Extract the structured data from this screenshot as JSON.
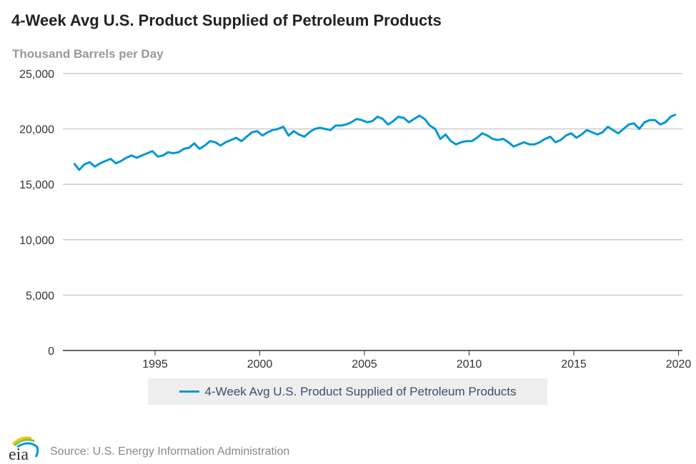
{
  "chart_data": {
    "type": "line",
    "title": "4-Week Avg U.S. Product Supplied of Petroleum Products",
    "ylabel": "Thousand Barrels per Day",
    "xlabel": "",
    "ylim": [
      0,
      25000
    ],
    "yticks": [
      0,
      5000,
      10000,
      15000,
      20000,
      25000
    ],
    "ytick_labels": [
      "0",
      "5,000",
      "10,000",
      "15,000",
      "20,000",
      "25,000"
    ],
    "xticks": [
      1995,
      2000,
      2005,
      2010,
      2015,
      2020
    ],
    "xtick_labels": [
      "1995",
      "2000",
      "2005",
      "2010",
      "2015",
      "2020"
    ],
    "grid": "horizontal",
    "legend_position": "bottom",
    "color": "#0096d7",
    "series": [
      {
        "name": "4-Week Avg U.S. Product Supplied of Petroleum Products",
        "start_year": 1991,
        "points_per_year": 4,
        "values": [
          16900,
          16300,
          16800,
          17000,
          16600,
          16900,
          17100,
          17300,
          16900,
          17100,
          17400,
          17600,
          17400,
          17600,
          17800,
          18000,
          17500,
          17600,
          17900,
          17800,
          17900,
          18200,
          18300,
          18700,
          18200,
          18500,
          18900,
          18800,
          18500,
          18800,
          19000,
          19200,
          18900,
          19300,
          19700,
          19800,
          19400,
          19700,
          19900,
          20000,
          20200,
          19400,
          19800,
          19500,
          19300,
          19700,
          20000,
          20100,
          20000,
          19900,
          20300,
          20300,
          20400,
          20600,
          20900,
          20800,
          20600,
          20700,
          21100,
          20900,
          20400,
          20700,
          21100,
          21000,
          20600,
          20900,
          21200,
          20900,
          20300,
          20000,
          19100,
          19500,
          18900,
          18600,
          18800,
          18900,
          18900,
          19200,
          19600,
          19400,
          19100,
          19000,
          19100,
          18800,
          18400,
          18600,
          18800,
          18600,
          18600,
          18800,
          19100,
          19300,
          18800,
          19000,
          19400,
          19600,
          19200,
          19500,
          19900,
          19700,
          19500,
          19700,
          20200,
          19900,
          19600,
          20000,
          20400,
          20500,
          20000,
          20600,
          20800,
          20800,
          20400,
          20600,
          21100,
          21300
        ]
      }
    ]
  },
  "legend": {
    "label": "4-Week Avg U.S. Product Supplied of Petroleum Products"
  },
  "footer": {
    "logo_text": "eia",
    "source": "Source: U.S. Energy Information Administration"
  }
}
